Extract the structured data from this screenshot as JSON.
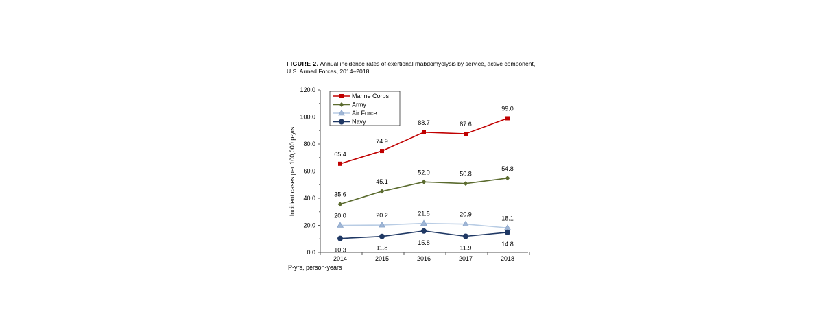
{
  "figure_label": "FIGURE 2.",
  "caption": "Annual incidence rates of exertional rhabdomyolysis by service, active component, U.S. Armed Forces, 2014–2018",
  "footnote": "P-yrs, person-years",
  "chart_data": {
    "type": "line",
    "title": "Annual incidence rates of exertional rhabdomyolysis by service, active component, U.S. Armed Forces, 2014–2018",
    "xlabel": "",
    "ylabel": "Incident cases per 100,000 p-yrs",
    "categories": [
      "2014",
      "2015",
      "2016",
      "2017",
      "2018"
    ],
    "ylim": [
      0,
      120
    ],
    "yticks": [
      "0.0",
      "20.0",
      "40.0",
      "60.0",
      "80.0",
      "100.0",
      "120.0"
    ],
    "grid": false,
    "legend_position": "top-left",
    "series": [
      {
        "name": "Marine Corps",
        "values": [
          65.4,
          74.9,
          88.7,
          87.6,
          99.0
        ],
        "labels": [
          "65.4",
          "74.9",
          "88.7",
          "87.6",
          "99.0"
        ],
        "color": "#c00000",
        "marker": "square",
        "label_pos": "above"
      },
      {
        "name": "Army",
        "values": [
          35.6,
          45.1,
          52.0,
          50.8,
          54.8
        ],
        "labels": [
          "35.6",
          "45.1",
          "52.0",
          "50.8",
          "54.8"
        ],
        "color": "#5b6b2f",
        "marker": "diamond",
        "label_pos": "above"
      },
      {
        "name": "Air Force",
        "values": [
          20.0,
          20.2,
          21.5,
          20.9,
          18.1
        ],
        "labels": [
          "20.0",
          "20.2",
          "21.5",
          "20.9",
          "18.1"
        ],
        "color": "#b8cce4",
        "marker": "triangle",
        "label_pos": "above"
      },
      {
        "name": "Navy",
        "values": [
          10.3,
          11.8,
          15.8,
          11.9,
          14.8
        ],
        "labels": [
          "10.3",
          "11.8",
          "15.8",
          "11.9",
          "14.8"
        ],
        "color": "#1f3864",
        "marker": "circle",
        "label_pos": "below"
      }
    ]
  }
}
